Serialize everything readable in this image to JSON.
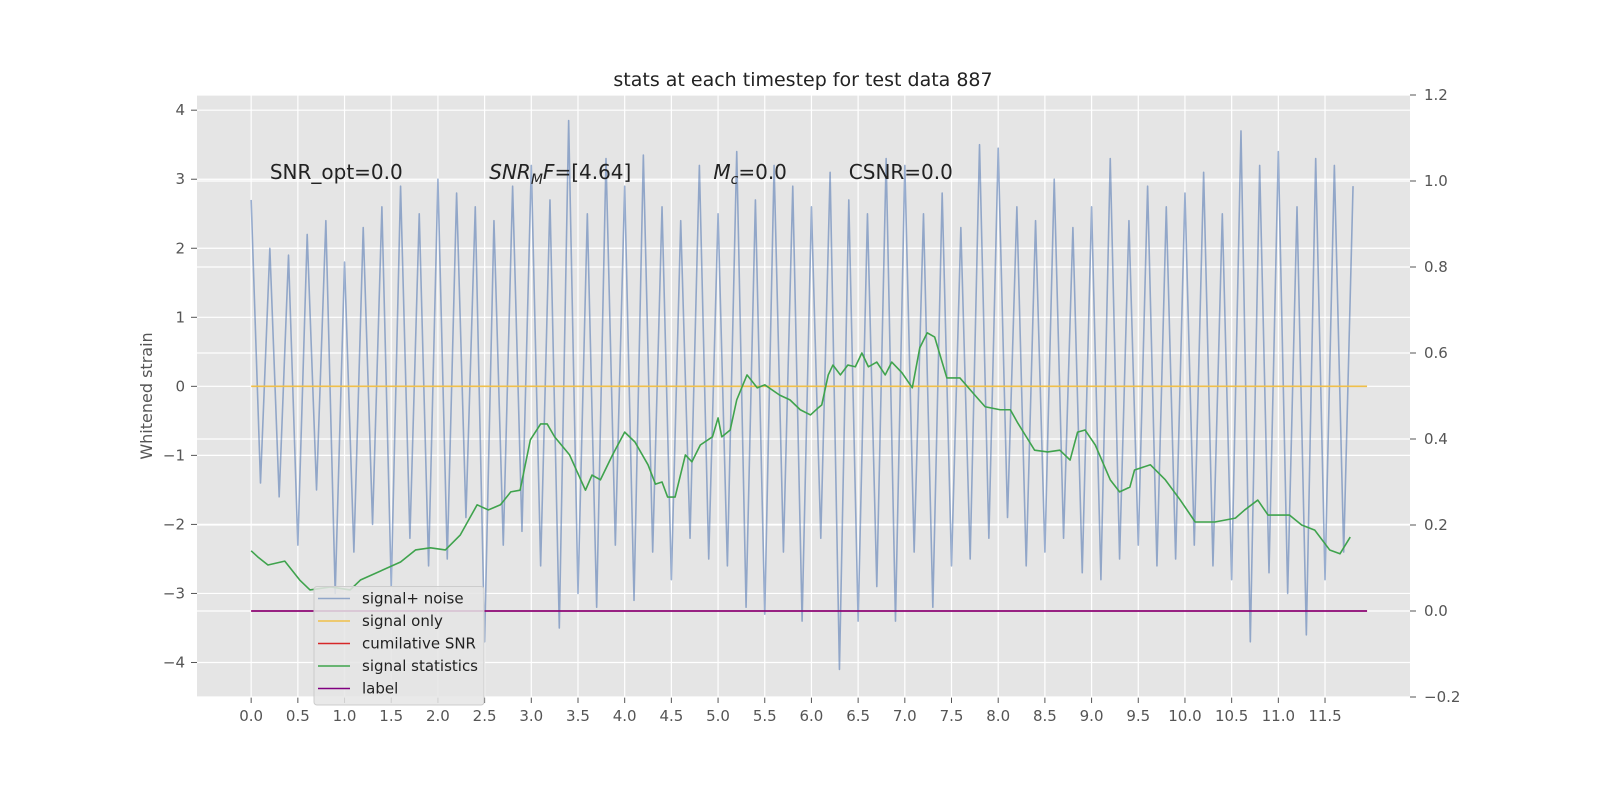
{
  "chart_data": {
    "type": "line",
    "title": "stats at each timestep for test data 887",
    "ylabel": "Whitened strain",
    "grid": true,
    "legend": "lower left",
    "xlim": [
      -0.58,
      12.41
    ],
    "ylim": [
      -4.5,
      4.22
    ],
    "y2lim": [
      -0.2,
      1.2
    ],
    "xticks": [
      {
        "value": 0,
        "label": "0.0"
      },
      {
        "value": 0.5,
        "label": "0.5"
      },
      {
        "value": 1,
        "label": "1.0"
      },
      {
        "value": 1.5,
        "label": "1.5"
      },
      {
        "value": 2,
        "label": "2.0"
      },
      {
        "value": 2.5,
        "label": "2.5"
      },
      {
        "value": 3,
        "label": "3.0"
      },
      {
        "value": 3.5,
        "label": "3.5"
      },
      {
        "value": 4,
        "label": "4.0"
      },
      {
        "value": 4.5,
        "label": "4.5"
      },
      {
        "value": 5,
        "label": "5.0"
      },
      {
        "value": 5.5,
        "label": "5.5"
      },
      {
        "value": 6,
        "label": "6.0"
      },
      {
        "value": 6.5,
        "label": "6.5"
      },
      {
        "value": 7,
        "label": "7.0"
      },
      {
        "value": 7.5,
        "label": "7.5"
      },
      {
        "value": 8,
        "label": "8.0"
      },
      {
        "value": 8.5,
        "label": "8.5"
      },
      {
        "value": 9,
        "label": "9.0"
      },
      {
        "value": 9.5,
        "label": "9.5"
      },
      {
        "value": 10,
        "label": "10.0"
      },
      {
        "value": 10.5,
        "label": "10.5"
      },
      {
        "value": 11,
        "label": "11.0"
      },
      {
        "value": 11.5,
        "label": "11.5"
      }
    ],
    "yticks": [
      {
        "value": -4,
        "label": "−4"
      },
      {
        "value": -3,
        "label": "−3"
      },
      {
        "value": -2,
        "label": "−2"
      },
      {
        "value": -1,
        "label": "−1"
      },
      0,
      1,
      2,
      3,
      4
    ],
    "y2ticks": [
      {
        "value": -0.2,
        "label": "−0.2"
      },
      {
        "value": 0,
        "label": "0.0"
      },
      {
        "value": 0.2,
        "label": "0.2"
      },
      {
        "value": 0.4,
        "label": "0.4"
      },
      {
        "value": 0.6,
        "label": "0.6"
      },
      {
        "value": 0.8,
        "label": "0.8"
      },
      {
        "value": 1,
        "label": "1.0"
      },
      {
        "value": 1.2,
        "label": "1.2"
      }
    ],
    "annotations": [
      {
        "x": 0.2,
        "y": 3.0,
        "parts": [
          {
            "text": "SNR_opt=0.0"
          }
        ]
      },
      {
        "x": 2.55,
        "y": 3.0,
        "parts": [
          {
            "text": "SNR",
            "italic": true
          },
          {
            "text": "M",
            "italic": true,
            "sub": true
          },
          {
            "text": "F",
            "italic": true
          },
          {
            "text": "=[4.64]"
          }
        ]
      },
      {
        "x": 4.95,
        "y": 3.0,
        "parts": [
          {
            "text": "M",
            "italic": true
          },
          {
            "text": "c",
            "italic": true,
            "sub": true
          },
          {
            "text": "=0.0"
          }
        ]
      },
      {
        "x": 6.4,
        "y": 3.0,
        "parts": [
          {
            "text": "CSNR=0.0"
          }
        ]
      }
    ],
    "series": [
      {
        "name": "signal+ noise",
        "color": "#4c72b0",
        "opacity": 0.55,
        "x": [
          0,
          0.1,
          0.2,
          0.3,
          0.4,
          0.5,
          0.6,
          0.7,
          0.8,
          0.9,
          1,
          1.1,
          1.2,
          1.3,
          1.4,
          1.5,
          1.6,
          1.7,
          1.8,
          1.9,
          2,
          2.1,
          2.2,
          2.3,
          2.4,
          2.5,
          2.6,
          2.7,
          2.8,
          2.9,
          3,
          3.1,
          3.2,
          3.3,
          3.4,
          3.5,
          3.6,
          3.7,
          3.8,
          3.9,
          4,
          4.1,
          4.2,
          4.3,
          4.4,
          4.5,
          4.6,
          4.7,
          4.8,
          4.9,
          5,
          5.1,
          5.2,
          5.3,
          5.4,
          5.5,
          5.6,
          5.7,
          5.8,
          5.9,
          6,
          6.1,
          6.2,
          6.3,
          6.4,
          6.5,
          6.6,
          6.7,
          6.8,
          6.9,
          7,
          7.1,
          7.2,
          7.3,
          7.4,
          7.5,
          7.6,
          7.7,
          7.8,
          7.9,
          8,
          8.1,
          8.2,
          8.3,
          8.4,
          8.5,
          8.6,
          8.7,
          8.8,
          8.9,
          9,
          9.1,
          9.2,
          9.3,
          9.4,
          9.5,
          9.6,
          9.7,
          9.8,
          9.9,
          10,
          10.1,
          10.2,
          10.3,
          10.4,
          10.5,
          10.6,
          10.7,
          10.8,
          10.9,
          11,
          11.1,
          11.2,
          11.3,
          11.4,
          11.5,
          11.6,
          11.7,
          11.8
        ],
        "values": [
          2.7,
          -1.4,
          2.0,
          -1.6,
          1.9,
          -2.3,
          2.2,
          -1.5,
          2.4,
          -3.0,
          1.8,
          -2.4,
          2.3,
          -2.0,
          2.6,
          -2.9,
          2.9,
          -2.2,
          2.5,
          -2.6,
          3.0,
          -2.5,
          2.8,
          -1.9,
          2.6,
          -3.7,
          2.4,
          -2.3,
          2.9,
          -2.1,
          3.2,
          -2.6,
          2.7,
          -3.5,
          3.85,
          -3.0,
          2.5,
          -3.2,
          3.3,
          -2.3,
          2.9,
          -3.1,
          3.35,
          -2.4,
          2.6,
          -2.8,
          2.4,
          -2.2,
          3.2,
          -2.5,
          2.5,
          -2.6,
          3.4,
          -3.2,
          2.7,
          -3.3,
          3.2,
          -2.4,
          2.9,
          -3.4,
          2.6,
          -2.2,
          3.1,
          -4.1,
          2.7,
          -3.4,
          2.5,
          -2.9,
          3.3,
          -3.4,
          3.2,
          -2.4,
          2.5,
          -3.2,
          2.8,
          -2.6,
          2.3,
          -2.5,
          3.5,
          -2.2,
          3.45,
          -1.9,
          2.6,
          -2.6,
          2.4,
          -2.4,
          3.0,
          -2.2,
          2.3,
          -2.7,
          2.6,
          -2.8,
          3.3,
          -2.5,
          2.4,
          -2.3,
          2.9,
          -2.6,
          2.6,
          -2.5,
          2.8,
          -2.3,
          3.1,
          -2.6,
          2.5,
          -2.8,
          3.7,
          -3.7,
          3.2,
          -2.7,
          3.4,
          -3.0,
          2.6,
          -3.6,
          3.3,
          -2.8,
          3.2,
          -2.4,
          2.9
        ]
      },
      {
        "name": "signal only",
        "color": "#f0c04a",
        "x": [
          0,
          11.95
        ],
        "values": [
          0,
          0
        ]
      },
      {
        "name": "cumilative SNR",
        "color": "#d62728",
        "axis": "y2",
        "x": [
          0,
          11.95
        ],
        "values": [
          0,
          0
        ]
      },
      {
        "name": "signal statistics",
        "color": "#3fa34d",
        "axis": "y2",
        "x": [
          0,
          0.07,
          0.18,
          0.36,
          0.52,
          0.63,
          0.85,
          1.06,
          1.17,
          1.6,
          1.76,
          1.92,
          2.08,
          2.24,
          2.34,
          2.42,
          2.54,
          2.67,
          2.78,
          2.88,
          2.99,
          3.1,
          3.17,
          3.25,
          3.41,
          3.58,
          3.65,
          3.74,
          3.87,
          4.0,
          4.11,
          4.25,
          4.33,
          4.4,
          4.46,
          4.54,
          4.65,
          4.72,
          4.81,
          4.94,
          5.0,
          5.04,
          5.13,
          5.2,
          5.31,
          5.42,
          5.5,
          5.66,
          5.77,
          5.88,
          5.99,
          6.07,
          6.11,
          6.18,
          6.23,
          6.31,
          6.39,
          6.47,
          6.54,
          6.61,
          6.7,
          6.79,
          6.86,
          6.97,
          7.08,
          7.16,
          7.24,
          7.32,
          7.45,
          7.59,
          7.75,
          7.86,
          8.02,
          8.13,
          8.21,
          8.29,
          8.39,
          8.53,
          8.66,
          8.77,
          8.85,
          8.93,
          9.04,
          9.2,
          9.3,
          9.41,
          9.46,
          9.63,
          9.79,
          9.95,
          10.11,
          10.32,
          10.54,
          10.64,
          10.78,
          10.89,
          11.12,
          11.25,
          11.39,
          11.55,
          11.66,
          11.77
        ],
        "values": [
          0.14,
          0.126,
          0.107,
          0.116,
          0.072,
          0.049,
          0.056,
          0.049,
          0.072,
          0.114,
          0.142,
          0.147,
          0.142,
          0.177,
          0.216,
          0.247,
          0.235,
          0.247,
          0.277,
          0.281,
          0.398,
          0.435,
          0.435,
          0.405,
          0.363,
          0.281,
          0.316,
          0.305,
          0.363,
          0.416,
          0.393,
          0.34,
          0.295,
          0.3,
          0.265,
          0.265,
          0.363,
          0.347,
          0.386,
          0.405,
          0.449,
          0.405,
          0.421,
          0.491,
          0.549,
          0.519,
          0.526,
          0.502,
          0.491,
          0.468,
          0.456,
          0.472,
          0.479,
          0.549,
          0.572,
          0.549,
          0.572,
          0.568,
          0.6,
          0.568,
          0.579,
          0.549,
          0.579,
          0.554,
          0.519,
          0.612,
          0.647,
          0.637,
          0.542,
          0.542,
          0.502,
          0.475,
          0.468,
          0.468,
          0.437,
          0.409,
          0.374,
          0.37,
          0.374,
          0.351,
          0.416,
          0.421,
          0.386,
          0.305,
          0.277,
          0.288,
          0.328,
          0.34,
          0.305,
          0.258,
          0.207,
          0.207,
          0.216,
          0.235,
          0.258,
          0.223,
          0.223,
          0.2,
          0.188,
          0.142,
          0.133,
          0.172
        ]
      },
      {
        "name": "label",
        "color": "#800080",
        "axis": "y2",
        "x": [
          0,
          11.95
        ],
        "values": [
          0,
          0
        ]
      }
    ]
  }
}
